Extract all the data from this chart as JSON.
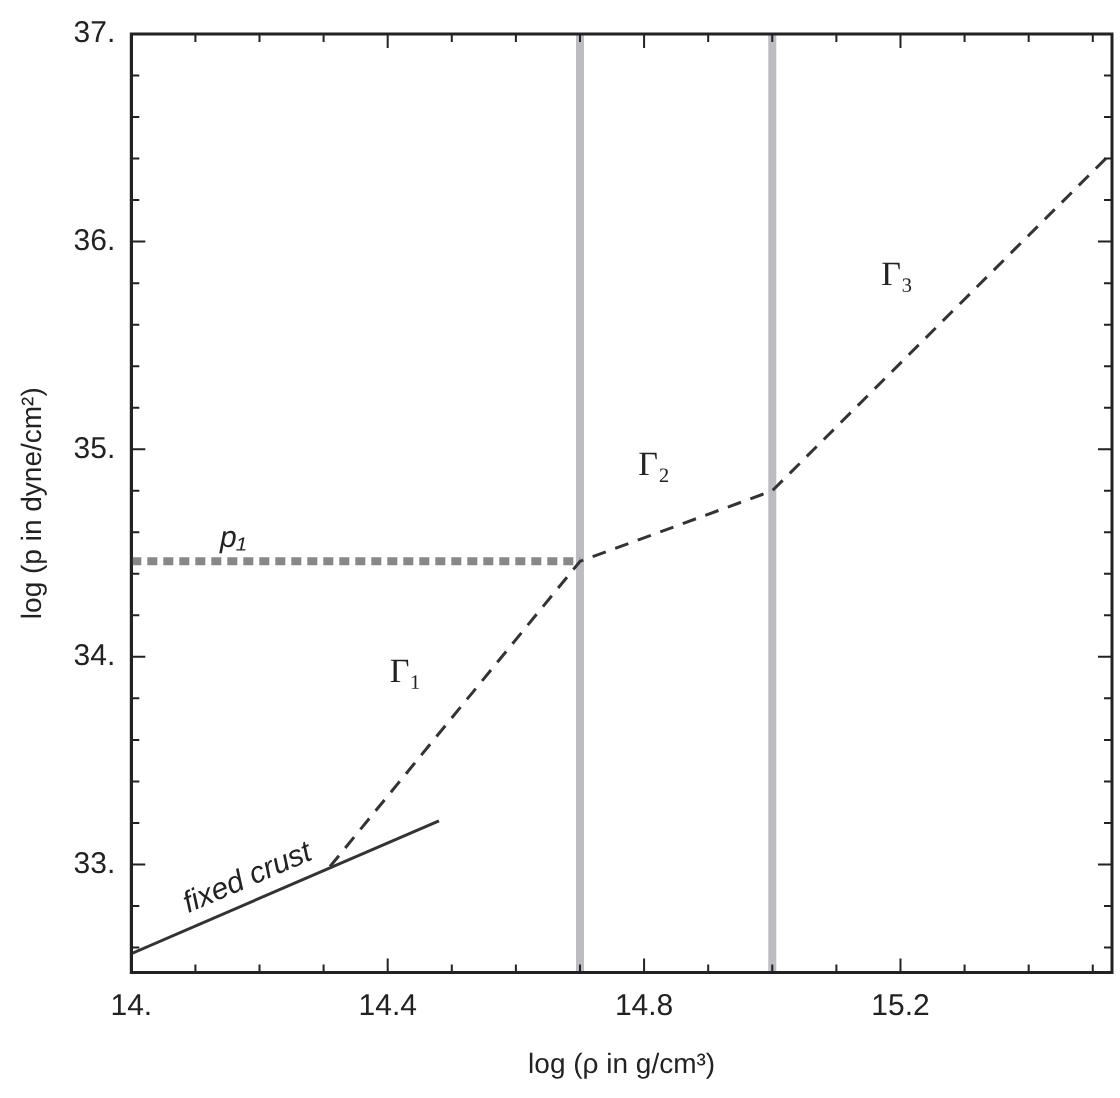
{
  "chart_data": {
    "type": "line",
    "xlabel": "log (ρ in g/cm³)",
    "ylabel": "log (p in dyne/cm²)",
    "xlim": [
      14,
      15.53
    ],
    "ylim": [
      32.48,
      37
    ],
    "xticks": [
      {
        "value": 14,
        "label": "14."
      },
      {
        "value": 14.1,
        "label": null
      },
      {
        "value": 14.2,
        "label": null
      },
      {
        "value": 14.3,
        "label": null
      },
      {
        "value": 14.4,
        "label": "14.4"
      },
      {
        "value": 14.5,
        "label": null
      },
      {
        "value": 14.6,
        "label": null
      },
      {
        "value": 14.7,
        "label": null
      },
      {
        "value": 14.8,
        "label": "14.8"
      },
      {
        "value": 14.9,
        "label": null
      },
      {
        "value": 15,
        "label": null
      },
      {
        "value": 15.1,
        "label": null
      },
      {
        "value": 15.2,
        "label": "15.2"
      },
      {
        "value": 15.3,
        "label": null
      },
      {
        "value": 15.4,
        "label": null
      },
      {
        "value": 15.5,
        "label": null
      }
    ],
    "yticks": [
      {
        "value": 32.6,
        "label": null
      },
      {
        "value": 32.8,
        "label": null
      },
      {
        "value": 33,
        "label": "33."
      },
      {
        "value": 33.2,
        "label": null
      },
      {
        "value": 33.4,
        "label": null
      },
      {
        "value": 33.6,
        "label": null
      },
      {
        "value": 33.8,
        "label": null
      },
      {
        "value": 34,
        "label": "34."
      },
      {
        "value": 34.2,
        "label": null
      },
      {
        "value": 34.4,
        "label": null
      },
      {
        "value": 34.6,
        "label": null
      },
      {
        "value": 34.8,
        "label": null
      },
      {
        "value": 35,
        "label": "35."
      },
      {
        "value": 35.2,
        "label": null
      },
      {
        "value": 35.4,
        "label": null
      },
      {
        "value": 35.6,
        "label": null
      },
      {
        "value": 35.8,
        "label": null
      },
      {
        "value": 36,
        "label": "36."
      },
      {
        "value": 36.2,
        "label": null
      },
      {
        "value": 36.4,
        "label": null
      },
      {
        "value": 36.6,
        "label": null
      },
      {
        "value": 36.8,
        "label": null
      },
      {
        "value": 37,
        "label": "37."
      }
    ],
    "grid": false,
    "legend": false,
    "marker": "none",
    "series": [
      {
        "name": "fixed crust",
        "color": "#333333",
        "line_style": "solid",
        "x": [
          14,
          14.48
        ],
        "values": [
          32.57,
          33.21
        ]
      },
      {
        "color": "#333333",
        "line_style": "dashed",
        "x": [
          14.31,
          14.7,
          15,
          15.53
        ],
        "values": [
          32.99,
          34.46,
          34.8,
          36.43
        ]
      },
      {
        "name": "p₁",
        "color": "#888888",
        "line_style": "dotted",
        "x": [
          14,
          14.7
        ],
        "values": [
          34.46,
          34.46
        ]
      }
    ],
    "ref_lines": [
      {
        "axis": "x",
        "value": 14.7,
        "color": "#bcbcc2"
      },
      {
        "axis": "x",
        "value": 15,
        "color": "#bcbcc2"
      }
    ],
    "annotations": [
      "Γ₁",
      "Γ₂",
      "Γ₃"
    ]
  }
}
